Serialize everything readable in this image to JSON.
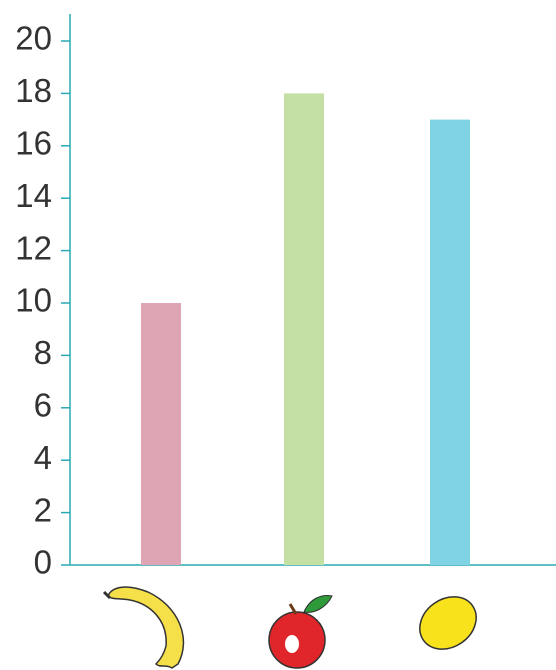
{
  "chart_data": {
    "type": "bar",
    "categories": [
      null,
      null,
      null
    ],
    "values": [
      10,
      18,
      17
    ],
    "colors": [
      "#dea5b4",
      "#c5e0a5",
      "#80d3e4"
    ],
    "ylim": [
      0,
      20
    ],
    "yticks": [
      0,
      2,
      4,
      6,
      8,
      10,
      12,
      14,
      16,
      18,
      20
    ],
    "grid": false
  }
}
